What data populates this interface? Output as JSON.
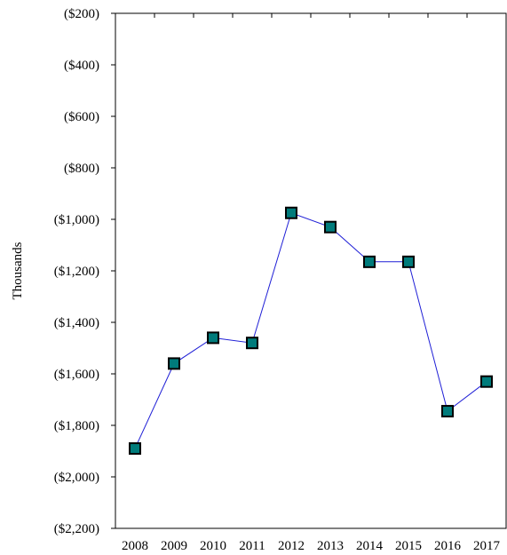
{
  "chart_data": {
    "type": "line",
    "title": "",
    "xlabel": "",
    "ylabel": "Thousands",
    "categories": [
      "2008",
      "2009",
      "2010",
      "2011",
      "2012",
      "2013",
      "2014",
      "2015",
      "2016",
      "2017"
    ],
    "series": [
      {
        "values": [
          -1890,
          -1560,
          -1460,
          -1480,
          -975,
          -1030,
          -1165,
          -1165,
          -1745,
          -1630
        ],
        "line_color": "#1f1fd6",
        "marker": "square",
        "marker_color": "#007b7b"
      }
    ],
    "ylim": [
      -2200,
      -200
    ],
    "yticks": [
      -200,
      -400,
      -600,
      -800,
      -1000,
      -1200,
      -1400,
      -1600,
      -1800,
      -2000,
      -2200
    ],
    "ytick_labels": [
      "($200)",
      "($400)",
      "($600)",
      "($800)",
      "($1,000)",
      "($1,200)",
      "($1,400)",
      "($1,600)",
      "($1,800)",
      "($2,000)",
      "($2,200)"
    ],
    "grid": false,
    "legend": "none"
  }
}
